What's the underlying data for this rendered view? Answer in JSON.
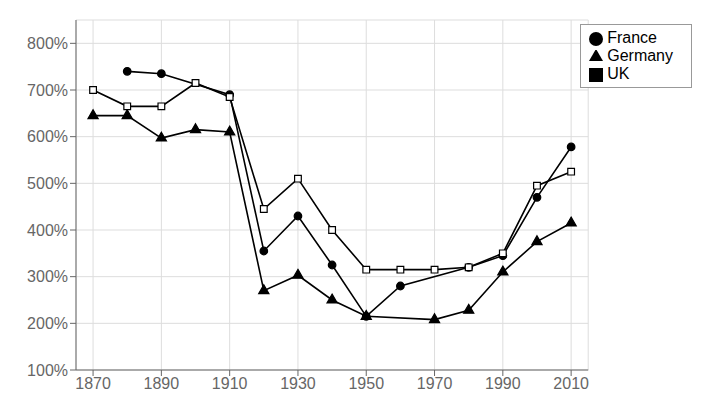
{
  "chart_data": {
    "type": "line",
    "x": [
      1870,
      1880,
      1890,
      1900,
      1910,
      1920,
      1930,
      1940,
      1950,
      1960,
      1970,
      1980,
      1990,
      2000,
      2010
    ],
    "series": [
      {
        "name": "Germany",
        "color": "#000000",
        "marker": "triangle",
        "values": [
          6.45,
          6.45,
          5.97,
          6.15,
          6.1,
          2.7,
          3.03,
          2.5,
          2.15,
          null,
          2.08,
          2.28,
          3.1,
          3.75,
          4.15
        ]
      },
      {
        "name": "France",
        "color": "#000000",
        "marker": "circle",
        "values": [
          null,
          7.4,
          7.35,
          null,
          6.9,
          3.55,
          4.3,
          3.25,
          2.15,
          2.8,
          null,
          3.2,
          3.45,
          4.7,
          5.78
        ]
      },
      {
        "name": "UK",
        "color": "#000000",
        "marker": "open_square",
        "values": [
          7.0,
          6.65,
          6.65,
          7.15,
          6.85,
          4.45,
          5.1,
          4.0,
          3.15,
          3.15,
          3.15,
          3.2,
          3.5,
          4.95,
          5.25
        ]
      }
    ],
    "xlim": [
      1865,
      2015
    ],
    "xticks": [
      1870,
      1890,
      1910,
      1930,
      1950,
      1970,
      1990,
      2010
    ],
    "ylim": [
      1.0,
      8.5
    ],
    "yticks": [
      {
        "value": 1.0,
        "label": "100%"
      },
      {
        "value": 2.0,
        "label": "200%"
      },
      {
        "value": 3.0,
        "label": "300%"
      },
      {
        "value": 4.0,
        "label": "400%"
      },
      {
        "value": 5.0,
        "label": "500%"
      },
      {
        "value": 6.0,
        "label": "600%"
      },
      {
        "value": 7.0,
        "label": "700%"
      },
      {
        "value": 8.0,
        "label": "800%"
      }
    ],
    "grid": true,
    "legend": "upper-right"
  }
}
